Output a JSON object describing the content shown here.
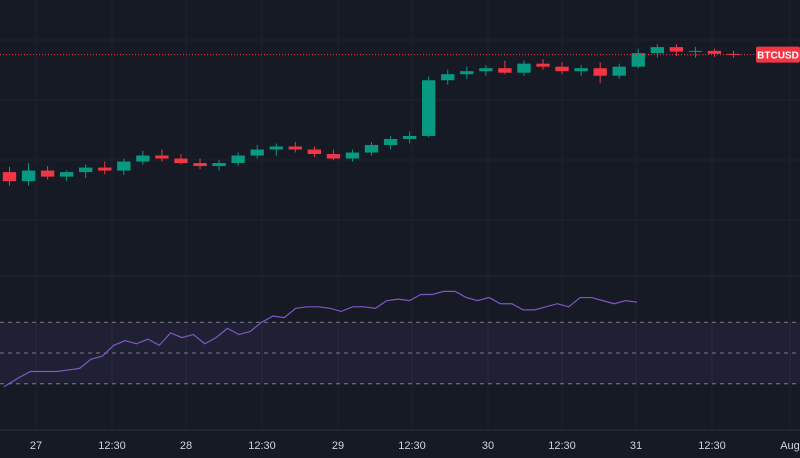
{
  "symbol": {
    "label": "BTCUSD",
    "color": "#f23645"
  },
  "colors": {
    "background": "#161a25",
    "grid": "#1f2330",
    "up": "#089981",
    "down": "#f23645",
    "rsi_line": "#7e57c2",
    "rsi_band": "#7e57c2"
  },
  "time_axis": {
    "labels": [
      "27",
      "12:30",
      "28",
      "12:30",
      "29",
      "12:30",
      "30",
      "12:30",
      "31",
      "12:30",
      "Aug"
    ]
  },
  "chart_data": [
    {
      "type": "candlestick",
      "title": "",
      "xlabel": "",
      "ylabel": "",
      "x_range": [
        -1,
        210
      ],
      "y_range": [
        66,
        100
      ],
      "last_price_line": 95.4,
      "candles": [
        {
          "o": 79.8,
          "h": 80.5,
          "l": 78.0,
          "c": 78.6
        },
        {
          "o": 78.6,
          "h": 81.0,
          "l": 78.0,
          "c": 80.0
        },
        {
          "o": 80.0,
          "h": 80.6,
          "l": 78.8,
          "c": 79.2
        },
        {
          "o": 79.2,
          "h": 80.0,
          "l": 78.6,
          "c": 79.8
        },
        {
          "o": 79.8,
          "h": 80.8,
          "l": 79.0,
          "c": 80.4
        },
        {
          "o": 80.4,
          "h": 81.2,
          "l": 79.5,
          "c": 80.0
        },
        {
          "o": 80.0,
          "h": 81.6,
          "l": 79.4,
          "c": 81.2
        },
        {
          "o": 81.2,
          "h": 82.6,
          "l": 80.8,
          "c": 82.0
        },
        {
          "o": 82.0,
          "h": 82.8,
          "l": 81.2,
          "c": 81.6
        },
        {
          "o": 81.6,
          "h": 82.2,
          "l": 80.8,
          "c": 81.0
        },
        {
          "o": 81.0,
          "h": 81.6,
          "l": 80.2,
          "c": 80.6
        },
        {
          "o": 80.6,
          "h": 81.4,
          "l": 80.0,
          "c": 81.0
        },
        {
          "o": 81.0,
          "h": 82.4,
          "l": 80.6,
          "c": 82.0
        },
        {
          "o": 82.0,
          "h": 83.4,
          "l": 81.6,
          "c": 82.8
        },
        {
          "o": 82.8,
          "h": 83.6,
          "l": 82.0,
          "c": 83.2
        },
        {
          "o": 83.2,
          "h": 83.8,
          "l": 82.4,
          "c": 82.8
        },
        {
          "o": 82.8,
          "h": 83.2,
          "l": 81.8,
          "c": 82.2
        },
        {
          "o": 82.2,
          "h": 82.8,
          "l": 81.4,
          "c": 81.6
        },
        {
          "o": 81.6,
          "h": 82.8,
          "l": 81.2,
          "c": 82.4
        },
        {
          "o": 82.4,
          "h": 83.8,
          "l": 82.0,
          "c": 83.4
        },
        {
          "o": 83.4,
          "h": 84.6,
          "l": 82.8,
          "c": 84.2
        },
        {
          "o": 84.2,
          "h": 85.2,
          "l": 83.6,
          "c": 84.6
        },
        {
          "o": 84.6,
          "h": 92.5,
          "l": 84.4,
          "c": 92.0
        },
        {
          "o": 92.0,
          "h": 93.4,
          "l": 91.4,
          "c": 92.8
        },
        {
          "o": 92.8,
          "h": 93.8,
          "l": 92.2,
          "c": 93.2
        },
        {
          "o": 93.2,
          "h": 94.0,
          "l": 92.6,
          "c": 93.6
        },
        {
          "o": 93.6,
          "h": 94.6,
          "l": 92.8,
          "c": 93.0
        },
        {
          "o": 93.0,
          "h": 94.6,
          "l": 92.6,
          "c": 94.2
        },
        {
          "o": 94.2,
          "h": 94.8,
          "l": 93.4,
          "c": 93.8
        },
        {
          "o": 93.8,
          "h": 94.4,
          "l": 92.8,
          "c": 93.2
        },
        {
          "o": 93.2,
          "h": 94.0,
          "l": 92.6,
          "c": 93.6
        },
        {
          "o": 93.6,
          "h": 94.4,
          "l": 91.6,
          "c": 92.6
        },
        {
          "o": 92.6,
          "h": 94.2,
          "l": 92.2,
          "c": 93.8
        },
        {
          "o": 93.8,
          "h": 96.2,
          "l": 93.6,
          "c": 95.6
        },
        {
          "o": 95.6,
          "h": 96.8,
          "l": 95.0,
          "c": 96.4
        },
        {
          "o": 96.4,
          "h": 96.8,
          "l": 95.2,
          "c": 95.8
        },
        {
          "o": 95.8,
          "h": 96.4,
          "l": 95.0,
          "c": 95.9
        },
        {
          "o": 95.9,
          "h": 96.2,
          "l": 95.1,
          "c": 95.5
        },
        {
          "o": 95.5,
          "h": 95.9,
          "l": 95.0,
          "c": 95.4
        }
      ]
    },
    {
      "type": "line",
      "title": "",
      "xlabel": "",
      "ylabel": "",
      "x_range": [
        -1,
        210
      ],
      "y_range": [
        0,
        100
      ],
      "bands": [
        70,
        50,
        30
      ],
      "series": [
        {
          "values": [
            [
              0,
              28
            ],
            [
              4,
              34
            ],
            [
              7,
              38
            ],
            [
              10,
              38
            ],
            [
              14,
              38
            ],
            [
              17,
              39
            ],
            [
              20,
              40
            ],
            [
              23,
              46
            ],
            [
              26,
              48
            ],
            [
              29,
              55
            ],
            [
              32,
              58
            ],
            [
              35,
              56
            ],
            [
              38,
              59
            ],
            [
              41,
              55
            ],
            [
              44,
              63
            ],
            [
              47,
              60
            ],
            [
              50,
              62
            ],
            [
              53,
              56
            ],
            [
              56,
              60
            ],
            [
              59,
              66
            ],
            [
              62,
              62
            ],
            [
              65,
              64
            ],
            [
              68,
              70
            ],
            [
              71,
              74
            ],
            [
              74,
              73
            ],
            [
              77,
              79
            ],
            [
              80,
              80
            ],
            [
              83,
              80
            ],
            [
              86,
              79
            ],
            [
              89,
              77
            ],
            [
              92,
              80
            ],
            [
              95,
              80
            ],
            [
              98,
              79
            ],
            [
              101,
              84
            ],
            [
              104,
              85
            ],
            [
              107,
              84
            ],
            [
              110,
              88
            ],
            [
              113,
              88
            ],
            [
              116,
              90
            ],
            [
              119,
              90
            ],
            [
              122,
              86
            ],
            [
              125,
              84
            ],
            [
              128,
              86
            ],
            [
              131,
              82
            ],
            [
              134,
              82
            ],
            [
              137,
              78
            ],
            [
              140,
              78
            ],
            [
              143,
              80
            ],
            [
              146,
              82
            ],
            [
              149,
              80
            ],
            [
              152,
              86
            ],
            [
              155,
              86
            ],
            [
              158,
              84
            ],
            [
              161,
              82
            ],
            [
              164,
              84
            ],
            [
              167,
              83
            ]
          ]
        }
      ]
    }
  ]
}
